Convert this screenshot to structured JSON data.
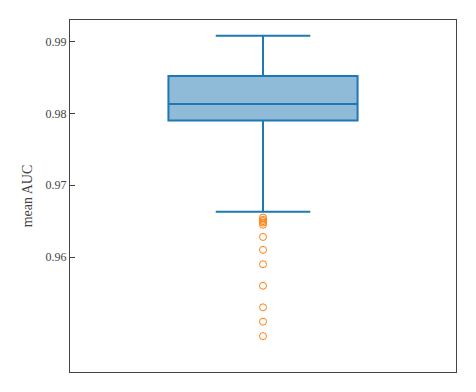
{
  "chart_data": {
    "type": "box",
    "ylabel": "mean AUC",
    "ylim": [
      0.944,
      0.993
    ],
    "yticks": [
      0.96,
      0.97,
      0.98,
      0.99
    ],
    "q1": 0.979,
    "median": 0.9813,
    "q3": 0.9852,
    "whisker_low": 0.9663,
    "whisker_high": 0.9908,
    "outliers": [
      0.9655,
      0.9652,
      0.965,
      0.9648,
      0.9645,
      0.9628,
      0.961,
      0.959,
      0.956,
      0.953,
      0.951,
      0.949
    ],
    "grid": false,
    "tick_labels": "y"
  }
}
